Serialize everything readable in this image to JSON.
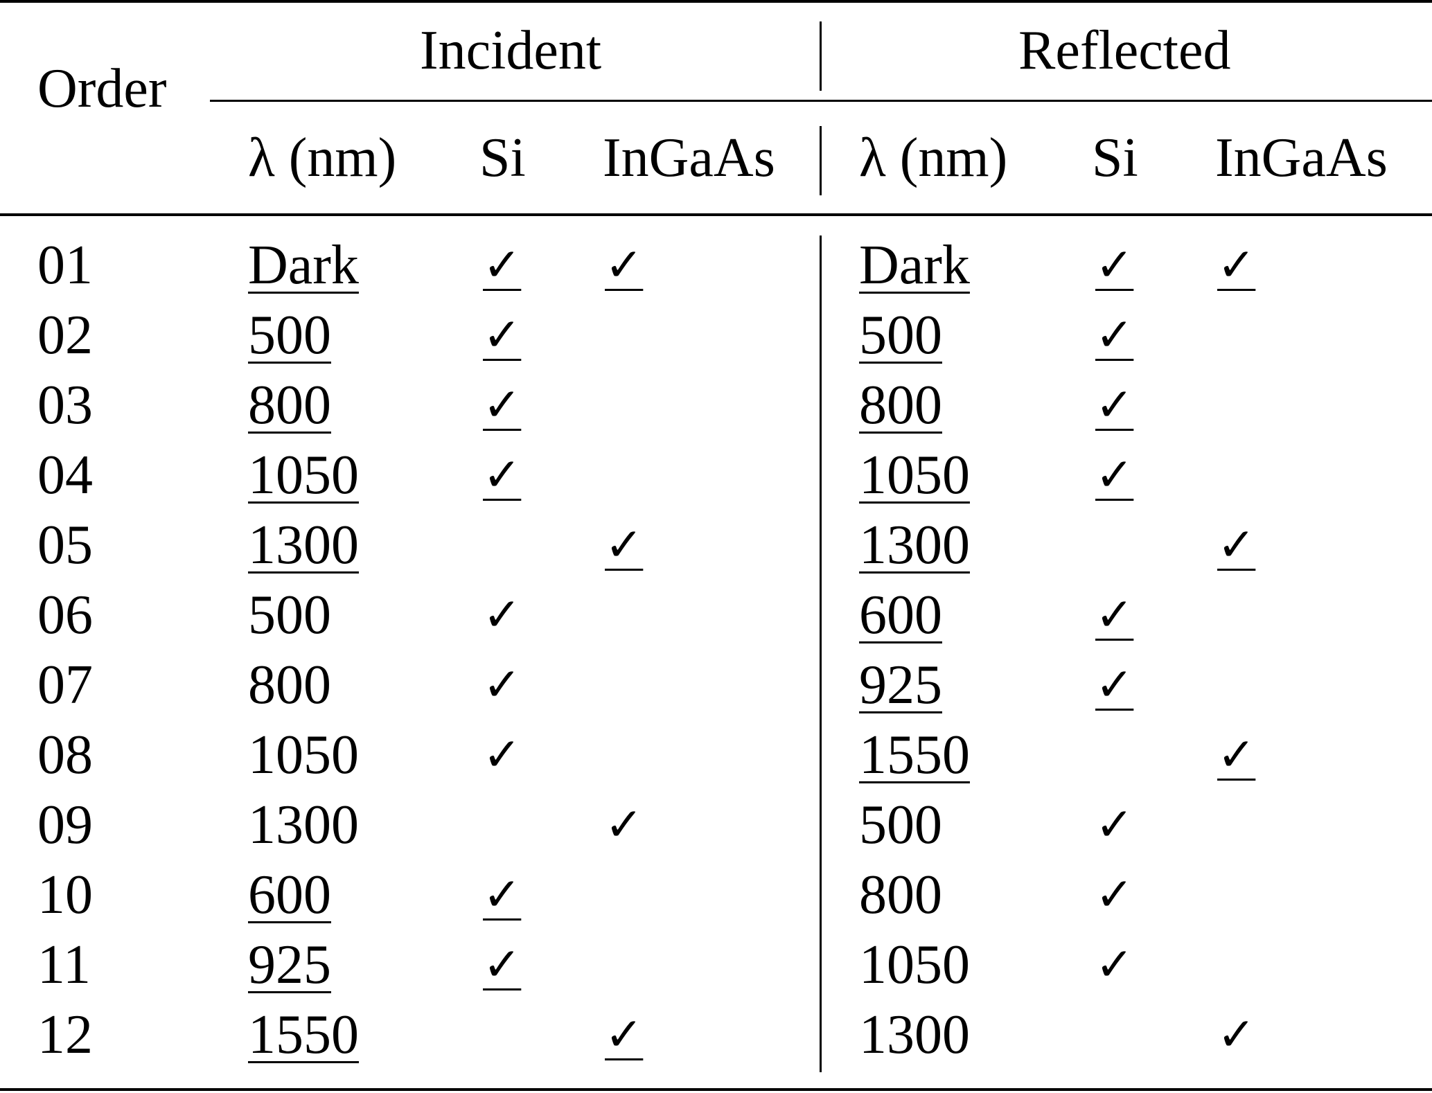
{
  "table": {
    "order_label": "Order",
    "incident_label": "Incident",
    "reflected_label": "Reflected",
    "subheaders": {
      "lambda": "λ (nm)",
      "si": "Si",
      "ingaas": "InGaAs"
    },
    "check_glyph": "✓",
    "rows": [
      {
        "order": "01",
        "inc": {
          "lambda": "Dark",
          "u": true,
          "si": true,
          "ingaas": true
        },
        "ref": {
          "lambda": "Dark",
          "u": true,
          "si": true,
          "ingaas": true
        }
      },
      {
        "order": "02",
        "inc": {
          "lambda": "500",
          "u": true,
          "si": true,
          "ingaas": false
        },
        "ref": {
          "lambda": "500",
          "u": true,
          "si": true,
          "ingaas": false
        }
      },
      {
        "order": "03",
        "inc": {
          "lambda": "800",
          "u": true,
          "si": true,
          "ingaas": false
        },
        "ref": {
          "lambda": "800",
          "u": true,
          "si": true,
          "ingaas": false
        }
      },
      {
        "order": "04",
        "inc": {
          "lambda": "1050",
          "u": true,
          "si": true,
          "ingaas": false
        },
        "ref": {
          "lambda": "1050",
          "u": true,
          "si": true,
          "ingaas": false
        }
      },
      {
        "order": "05",
        "inc": {
          "lambda": "1300",
          "u": true,
          "si": false,
          "ingaas": true
        },
        "ref": {
          "lambda": "1300",
          "u": true,
          "si": false,
          "ingaas": true
        }
      },
      {
        "order": "06",
        "inc": {
          "lambda": "500",
          "u": false,
          "si": true,
          "ingaas": false
        },
        "ref": {
          "lambda": "600",
          "u": true,
          "si": true,
          "ingaas": false
        }
      },
      {
        "order": "07",
        "inc": {
          "lambda": "800",
          "u": false,
          "si": true,
          "ingaas": false
        },
        "ref": {
          "lambda": "925",
          "u": true,
          "si": true,
          "ingaas": false
        }
      },
      {
        "order": "08",
        "inc": {
          "lambda": "1050",
          "u": false,
          "si": true,
          "ingaas": false
        },
        "ref": {
          "lambda": "1550",
          "u": true,
          "si": false,
          "ingaas": true
        }
      },
      {
        "order": "09",
        "inc": {
          "lambda": "1300",
          "u": false,
          "si": false,
          "ingaas": true
        },
        "ref": {
          "lambda": "500",
          "u": false,
          "si": true,
          "ingaas": false
        }
      },
      {
        "order": "10",
        "inc": {
          "lambda": "600",
          "u": true,
          "si": true,
          "ingaas": false
        },
        "ref": {
          "lambda": "800",
          "u": false,
          "si": true,
          "ingaas": false
        }
      },
      {
        "order": "11",
        "inc": {
          "lambda": "925",
          "u": true,
          "si": true,
          "ingaas": false
        },
        "ref": {
          "lambda": "1050",
          "u": false,
          "si": true,
          "ingaas": false
        }
      },
      {
        "order": "12",
        "inc": {
          "lambda": "1550",
          "u": true,
          "si": false,
          "ingaas": true
        },
        "ref": {
          "lambda": "1300",
          "u": false,
          "si": false,
          "ingaas": true
        }
      }
    ]
  }
}
